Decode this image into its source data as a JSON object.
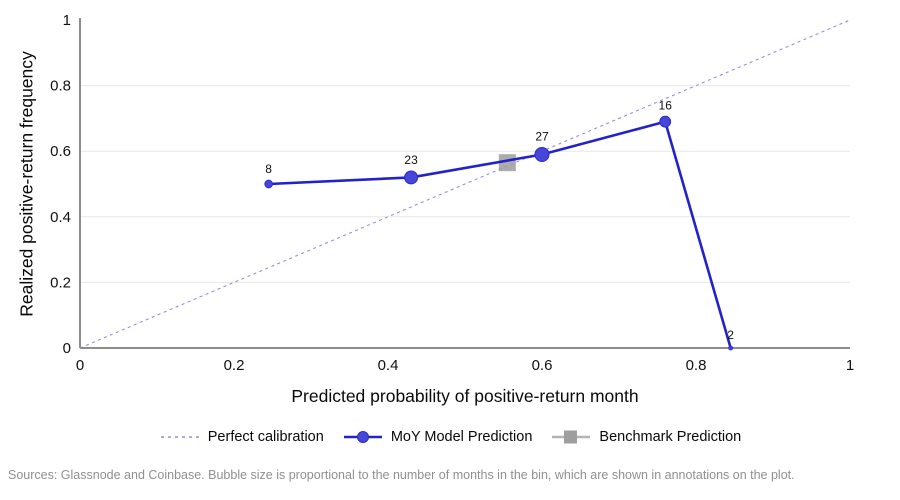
{
  "chart_data": {
    "type": "line",
    "title": "",
    "xlabel": "Predicted probability of positive-return month",
    "ylabel": "Realized positive-return frequency",
    "xlim": [
      0,
      1
    ],
    "ylim": [
      0,
      1
    ],
    "grid": "horizontal-only",
    "legend_position": "bottom-center",
    "x_ticks": {
      "values": [
        0,
        0.2,
        0.4,
        0.6,
        0.8,
        1
      ],
      "labels": [
        "0",
        "0.2",
        "0.4",
        "0.6",
        "0.8",
        "1"
      ]
    },
    "y_ticks": {
      "values": [
        0,
        0.2,
        0.4,
        0.6,
        0.8,
        1
      ],
      "labels": [
        "0",
        "0.2",
        "0.4",
        "0.6",
        "0.8",
        "1"
      ]
    },
    "gridlines_y": [
      0.2,
      0.4,
      0.6,
      0.8
    ],
    "series": [
      {
        "name": "Perfect calibration",
        "kind": "dashed-line",
        "color": "#9090d8",
        "points": [
          {
            "x": 0,
            "y": 0
          },
          {
            "x": 1,
            "y": 1
          }
        ]
      },
      {
        "name": "MoY Model Prediction",
        "kind": "bubble-line",
        "line_color": "#2222cc",
        "marker_color": "#4646d8",
        "points": [
          {
            "x": 0.245,
            "y": 0.5,
            "months": 8
          },
          {
            "x": 0.43,
            "y": 0.52,
            "months": 23
          },
          {
            "x": 0.6,
            "y": 0.59,
            "months": 27
          },
          {
            "x": 0.76,
            "y": 0.69,
            "months": 16
          },
          {
            "x": 0.845,
            "y": 0.0,
            "months": 2
          }
        ]
      },
      {
        "name": "Benchmark Prediction",
        "kind": "square-marker",
        "color": "#9e9e9e",
        "points": [
          {
            "x": 0.555,
            "y": 0.565
          }
        ]
      }
    ],
    "colors": {
      "grid": "#e7e7e7",
      "axis": "#666666",
      "annotation_text": "#111111"
    }
  },
  "legend": {
    "items": [
      {
        "label": "Perfect calibration"
      },
      {
        "label": "MoY Model Prediction"
      },
      {
        "label": "Benchmark Prediction"
      }
    ]
  },
  "footer": {
    "text": "Sources: Glassnode and Coinbase. Bubble size is proportional to the number of months in the bin, which are shown in annotations on the plot."
  }
}
